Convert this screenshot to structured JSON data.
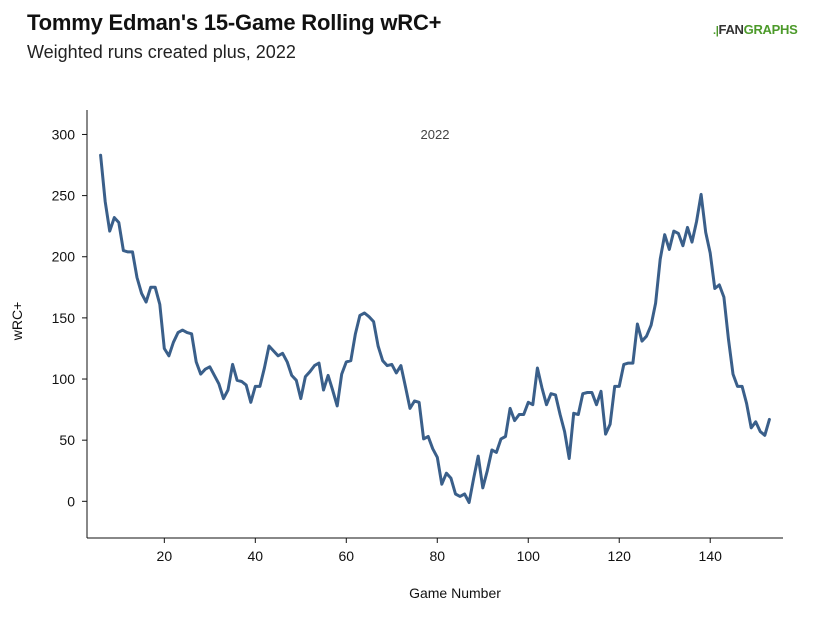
{
  "header": {
    "title": "Tommy Edman's 15-Game Rolling wRC+",
    "subtitle": "Weighted runs created plus, 2022"
  },
  "logo": {
    "fan": "FAN",
    "graphs": "GRAPHS",
    "mark": ".|"
  },
  "chart_data": {
    "type": "line",
    "title": "Tommy Edman's 15-Game Rolling wRC+",
    "subtitle": "Weighted runs created plus, 2022",
    "annotation": "2022",
    "xlabel": "Game Number",
    "ylabel": "wRC+",
    "xlim": [
      3,
      156
    ],
    "ylim": [
      -30,
      320
    ],
    "xticks": [
      20,
      40,
      60,
      80,
      100,
      120,
      140
    ],
    "yticks": [
      0,
      50,
      100,
      150,
      200,
      250,
      300
    ],
    "grid": false,
    "series_color": "#3a5f8a",
    "series": [
      {
        "x": [
          6,
          7,
          8,
          9,
          10,
          11,
          12,
          13,
          14,
          15,
          16,
          17,
          18,
          19,
          20,
          21,
          22,
          23,
          24,
          25,
          26,
          27,
          28,
          29,
          30,
          31,
          32,
          33,
          34,
          35,
          36,
          37,
          38,
          39,
          40,
          41,
          42,
          43,
          44,
          45,
          46,
          47,
          48,
          49,
          50,
          51,
          52,
          53,
          54,
          55,
          56,
          57,
          58,
          59,
          60,
          61,
          62,
          63,
          64,
          65,
          66,
          67,
          68,
          69,
          70,
          71,
          72,
          73,
          74,
          75,
          76,
          77,
          78,
          79,
          80,
          81,
          82,
          83,
          84,
          85,
          86,
          87,
          88,
          89,
          90,
          91,
          92,
          93,
          94,
          95,
          96,
          97,
          98,
          99,
          100,
          101,
          102,
          103,
          104,
          105,
          106,
          107,
          108,
          109,
          110,
          111,
          112,
          113,
          114,
          115,
          116,
          117,
          118,
          119,
          120,
          121,
          122,
          123,
          124,
          125,
          126,
          127,
          128,
          129,
          130,
          131,
          132,
          133,
          134,
          135,
          136,
          137,
          138,
          139,
          140,
          141,
          142,
          143,
          144,
          145,
          146,
          147,
          148,
          149,
          150,
          151,
          152,
          153
        ],
        "values": [
          283,
          245,
          221,
          232,
          228,
          205,
          204,
          204,
          183,
          170,
          163,
          175,
          175,
          161,
          125,
          119,
          130,
          138,
          140,
          138,
          137,
          114,
          104,
          108,
          110,
          103,
          96,
          84,
          91,
          112,
          99,
          98,
          95,
          81,
          94,
          94,
          109,
          127,
          123,
          119,
          121,
          114,
          103,
          99,
          84,
          102,
          106,
          111,
          113,
          91,
          103,
          91,
          78,
          104,
          114,
          115,
          137,
          152,
          154,
          151,
          147,
          127,
          115,
          111,
          112,
          105,
          111,
          94,
          76,
          82,
          81,
          51,
          53,
          43,
          36,
          14,
          23,
          19,
          6,
          4,
          6,
          -1,
          19,
          37,
          11,
          25,
          42,
          40,
          51,
          53,
          76,
          66,
          71,
          71,
          81,
          79,
          109,
          93,
          79,
          88,
          87,
          71,
          57,
          35,
          72,
          71,
          88,
          89,
          89,
          79,
          90,
          55,
          63,
          94,
          94,
          112,
          113,
          113,
          145,
          131,
          135,
          144,
          162,
          198,
          218,
          206,
          221,
          219,
          209,
          224,
          212,
          229,
          251,
          220,
          203,
          174,
          177,
          167,
          133,
          104,
          94,
          94,
          80,
          60,
          65,
          57,
          54,
          67
        ]
      }
    ]
  }
}
